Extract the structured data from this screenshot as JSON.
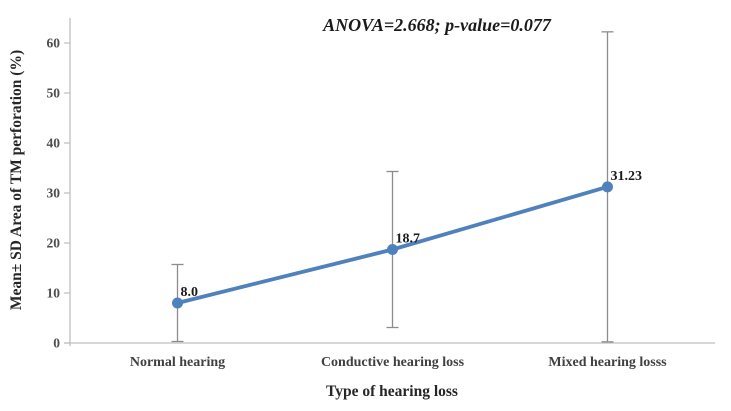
{
  "figure": {
    "annotation": "ANOVA=2.668; p-value=0.077",
    "x_axis_title": "Type of hearing loss",
    "y_axis_title": "Mean± SD Area of TM perforation (%)"
  },
  "chart_data": {
    "type": "line",
    "title": "",
    "annotation": "ANOVA=2.668; p-value=0.077",
    "categories": [
      "Normal hearing",
      "Conductive hearing loss",
      "Mixed hearing losss"
    ],
    "values": [
      8.0,
      18.7,
      31.23
    ],
    "point_labels": [
      "8.0",
      "18.7",
      "31.23"
    ],
    "sd_values": [
      7.7,
      15.6,
      31.0
    ],
    "error_bars": "mean plus/minus SD",
    "xlabel": "Type of hearing loss",
    "ylabel": "Mean± SD Area of TM perforation (%)",
    "ylim": [
      0,
      65
    ],
    "yticks": [
      0,
      10,
      20,
      30,
      40,
      50,
      60
    ],
    "grid": false,
    "legend": "none",
    "colors": {
      "line": "#4F81BD",
      "marker": "#4F81BD",
      "error_bar": "#8C8C8C",
      "axis": "#BFBFBF"
    }
  }
}
